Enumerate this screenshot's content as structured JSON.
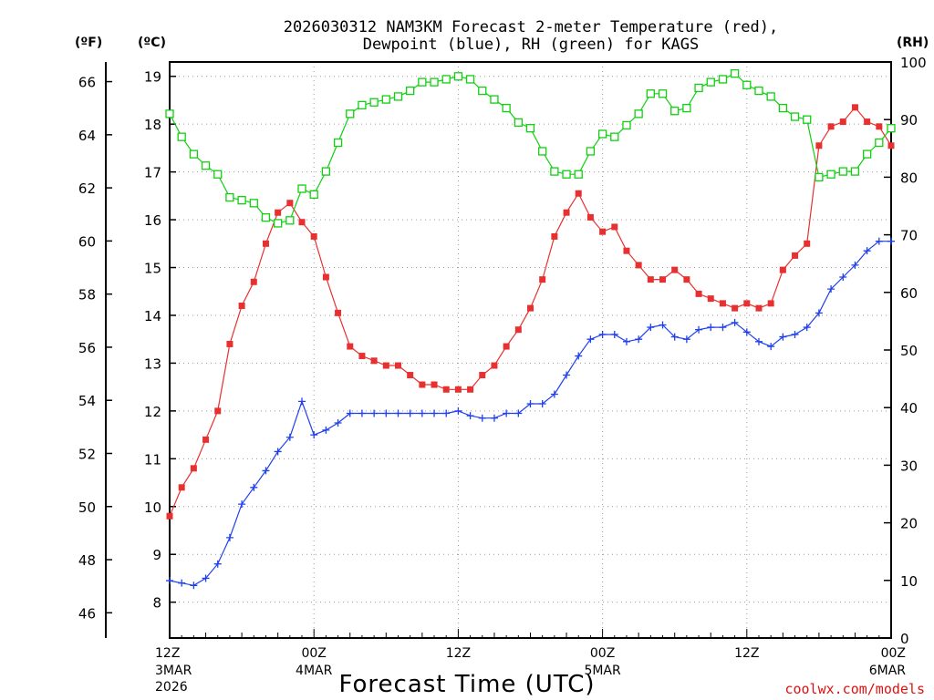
{
  "chart_data": {
    "type": "line",
    "title": "2026030312 NAM3KM Forecast 2-meter Temperature (red),",
    "subtitle": "Dewpoint (blue), RH (green) for KAGS",
    "xlabel": "Forecast Time (UTC)",
    "credit": "coolwx.com/models",
    "units": {
      "fahrenheit": "(ºF)",
      "celsius": "(ºC)",
      "rh": "(RH)"
    },
    "x_range_hours": [
      0,
      60
    ],
    "x_ticks": [
      {
        "hour": 0,
        "label": "12Z",
        "date": "3MAR",
        "year": "2026"
      },
      {
        "hour": 12,
        "label": "00Z",
        "date": "4MAR",
        "year": ""
      },
      {
        "hour": 24,
        "label": "12Z",
        "date": "",
        "year": ""
      },
      {
        "hour": 36,
        "label": "00Z",
        "date": "5MAR",
        "year": ""
      },
      {
        "hour": 48,
        "label": "12Z",
        "date": "",
        "year": ""
      },
      {
        "hour": 60,
        "label": "00Z",
        "date": "6MAR",
        "year": ""
      }
    ],
    "y_celsius": {
      "range": [
        7.25,
        19.3
      ],
      "ticks": [
        "8",
        "9",
        "10",
        "11",
        "12",
        "13",
        "14",
        "15",
        "16",
        "17",
        "18",
        "19"
      ]
    },
    "y_fahrenheit": {
      "ticks": [
        "46",
        "48",
        "50",
        "52",
        "54",
        "56",
        "58",
        "60",
        "62",
        "64",
        "66"
      ]
    },
    "y_rh": {
      "range": [
        0,
        100
      ],
      "ticks": [
        "0",
        "10",
        "20",
        "30",
        "40",
        "50",
        "60",
        "70",
        "80",
        "90",
        "100"
      ]
    },
    "series": [
      {
        "name": "2-meter Temperature",
        "units": "C",
        "color": "#e83030",
        "marker": "filled-square",
        "x": [
          0,
          1,
          2,
          3,
          4,
          5,
          6,
          7,
          8,
          9,
          10,
          11,
          12,
          13,
          14,
          15,
          16,
          17,
          18,
          19,
          20,
          21,
          22,
          23,
          24,
          25,
          26,
          27,
          28,
          29,
          30,
          31,
          32,
          33,
          34,
          35,
          36,
          37,
          38,
          39,
          40,
          41,
          42,
          43,
          44,
          45,
          46,
          47,
          48,
          49,
          50,
          51,
          52,
          53,
          54,
          55,
          56,
          57,
          58,
          59,
          60
        ],
        "values": [
          9.8,
          10.4,
          10.8,
          11.4,
          12.0,
          13.4,
          14.2,
          14.7,
          15.5,
          16.15,
          16.35,
          15.95,
          15.65,
          14.8,
          14.05,
          13.35,
          13.15,
          13.05,
          12.95,
          12.95,
          12.75,
          12.55,
          12.55,
          12.45,
          12.45,
          12.45,
          12.75,
          12.95,
          13.35,
          13.7,
          14.15,
          14.75,
          15.65,
          16.15,
          16.55,
          16.05,
          15.75,
          15.85,
          15.35,
          15.05,
          14.75,
          14.75,
          14.95,
          14.75,
          14.45,
          14.35,
          14.25,
          14.15,
          14.25,
          14.15,
          14.25,
          14.95,
          15.25,
          15.5,
          17.55,
          17.95,
          18.05,
          18.35,
          18.05,
          17.95,
          17.55
        ]
      },
      {
        "name": "Dewpoint",
        "units": "C",
        "color": "#2040ee",
        "marker": "plus",
        "x": [
          0,
          1,
          2,
          3,
          4,
          5,
          6,
          7,
          8,
          9,
          10,
          11,
          12,
          13,
          14,
          15,
          16,
          17,
          18,
          19,
          20,
          21,
          22,
          23,
          24,
          25,
          26,
          27,
          28,
          29,
          30,
          31,
          32,
          33,
          34,
          35,
          36,
          37,
          38,
          39,
          40,
          41,
          42,
          43,
          44,
          45,
          46,
          47,
          48,
          49,
          50,
          51,
          52,
          53,
          54,
          55,
          56,
          57,
          58,
          59,
          60
        ],
        "values": [
          8.45,
          8.4,
          8.35,
          8.5,
          8.8,
          9.35,
          10.05,
          10.4,
          10.75,
          11.15,
          11.45,
          12.2,
          11.5,
          11.6,
          11.75,
          11.95,
          11.95,
          11.95,
          11.95,
          11.95,
          11.95,
          11.95,
          11.95,
          11.95,
          12.0,
          11.9,
          11.85,
          11.85,
          11.95,
          11.95,
          12.15,
          12.15,
          12.35,
          12.75,
          13.15,
          13.5,
          13.6,
          13.6,
          13.45,
          13.5,
          13.75,
          13.8,
          13.55,
          13.5,
          13.7,
          13.75,
          13.75,
          13.85,
          13.65,
          13.45,
          13.35,
          13.55,
          13.6,
          13.75,
          14.05,
          14.55,
          14.8,
          15.05,
          15.35,
          15.55,
          15.55
        ]
      },
      {
        "name": "RH",
        "units": "%",
        "color": "#10d010",
        "marker": "hollow-square",
        "x": [
          0,
          1,
          2,
          3,
          4,
          5,
          6,
          7,
          8,
          9,
          10,
          11,
          12,
          13,
          14,
          15,
          16,
          17,
          18,
          19,
          20,
          21,
          22,
          23,
          24,
          25,
          26,
          27,
          28,
          29,
          30,
          31,
          32,
          33,
          34,
          35,
          36,
          37,
          38,
          39,
          40,
          41,
          42,
          43,
          44,
          45,
          46,
          47,
          48,
          49,
          50,
          51,
          52,
          53,
          54,
          55,
          56,
          57,
          58,
          59,
          60
        ],
        "values": [
          91,
          87,
          84,
          82,
          80.5,
          76.5,
          76,
          75.5,
          73,
          72,
          72.5,
          78,
          77,
          81,
          86,
          91,
          92.5,
          93,
          93.5,
          94,
          95,
          96.5,
          96.5,
          97,
          97.5,
          97,
          95,
          93.5,
          92,
          89.5,
          88.5,
          84.5,
          81,
          80.5,
          80.5,
          84.5,
          87.5,
          87,
          89,
          91,
          94.5,
          94.5,
          91.5,
          92,
          95.5,
          96.5,
          97,
          98,
          96,
          95,
          94,
          92,
          90.5,
          90,
          80,
          80.5,
          81,
          81,
          84,
          86,
          88.5
        ]
      }
    ]
  }
}
